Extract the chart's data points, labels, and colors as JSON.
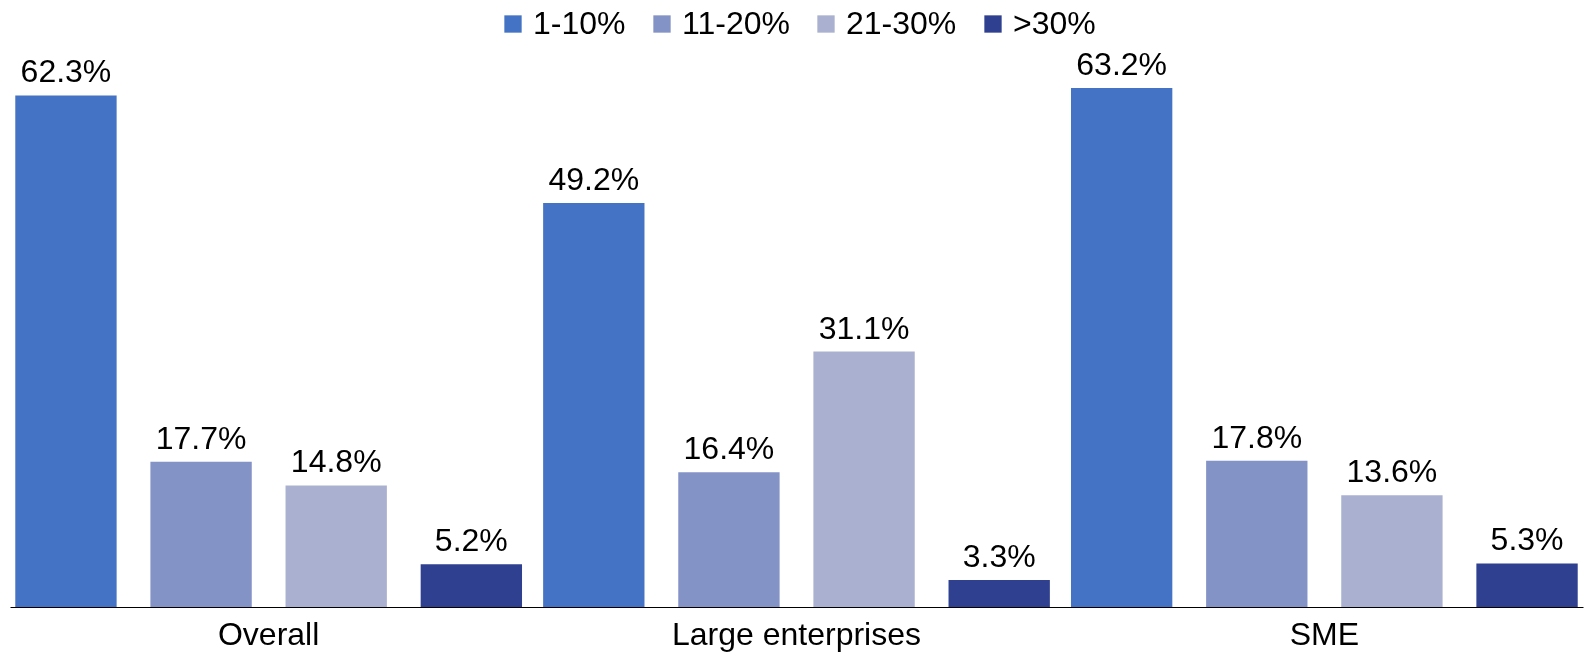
{
  "chart_data": {
    "type": "bar",
    "categories": [
      "Overall",
      "Large enterprises",
      "SME"
    ],
    "series": [
      {
        "name": "1-10%",
        "color": "#4472c4",
        "values": [
          62.3,
          49.2,
          63.2
        ],
        "value_labels": [
          "62.3%",
          "49.2%",
          "63.2%"
        ]
      },
      {
        "name": "11-20%",
        "color": "#8393c6",
        "values": [
          17.7,
          16.4,
          17.8
        ],
        "value_labels": [
          "17.7%",
          "16.4%",
          "17.8%"
        ]
      },
      {
        "name": "21-30%",
        "color": "#aab1d0",
        "values": [
          14.8,
          31.1,
          13.6
        ],
        "value_labels": [
          "14.8%",
          "31.1%",
          "13.6%"
        ]
      },
      {
        "name": ">30%",
        "color": "#2f4090",
        "values": [
          5.2,
          3.3,
          5.3
        ],
        "value_labels": [
          "5.2%",
          "3.3%",
          "5.3%"
        ]
      }
    ],
    "legend": "top"
  }
}
